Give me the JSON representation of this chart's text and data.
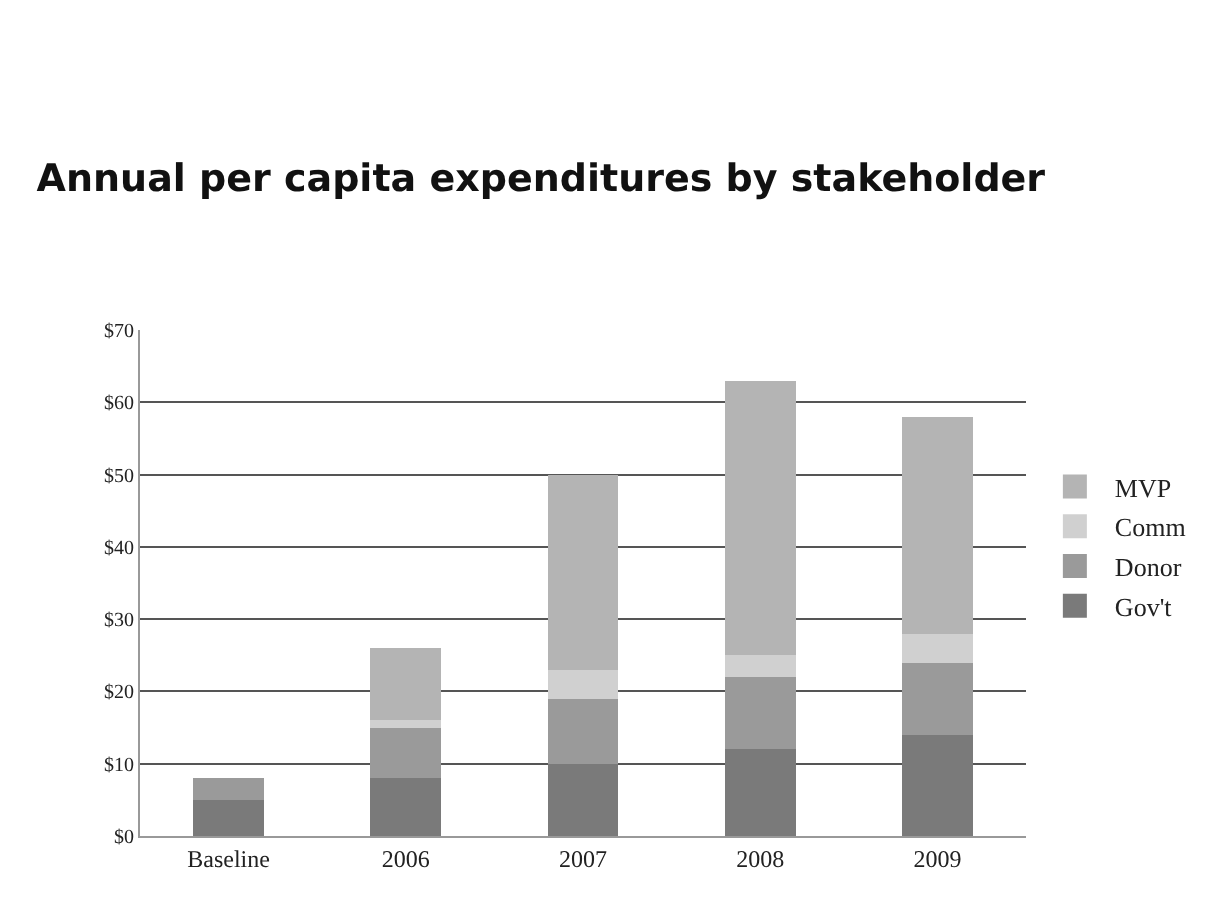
{
  "chart_data": {
    "type": "bar",
    "stacked": true,
    "title": "Annual per capita expenditures by stakeholder",
    "categories": [
      "Baseline",
      "2006",
      "2007",
      "2008",
      "2009"
    ],
    "series": [
      {
        "name": "Gov't",
        "color": "#7a7a7a",
        "values": [
          5,
          8,
          10,
          12,
          14
        ]
      },
      {
        "name": "Donor",
        "color": "#9a9a9a",
        "values": [
          3,
          7,
          9,
          10,
          10
        ]
      },
      {
        "name": "Comm",
        "color": "#d0d0d0",
        "values": [
          0,
          1,
          4,
          3,
          4
        ]
      },
      {
        "name": "MVP",
        "color": "#b4b4b4",
        "values": [
          0,
          10,
          27,
          38,
          30
        ]
      }
    ],
    "ylim": [
      0,
      70
    ],
    "yticks": [
      {
        "value": 0,
        "label": "$0"
      },
      {
        "value": 10,
        "label": "$10"
      },
      {
        "value": 20,
        "label": "$20"
      },
      {
        "value": 30,
        "label": "$30"
      },
      {
        "value": 40,
        "label": "$40"
      },
      {
        "value": 50,
        "label": "$50"
      },
      {
        "value": 60,
        "label": "$60"
      },
      {
        "value": 70,
        "label": "$70"
      }
    ],
    "grid": "y",
    "legend": "right"
  }
}
